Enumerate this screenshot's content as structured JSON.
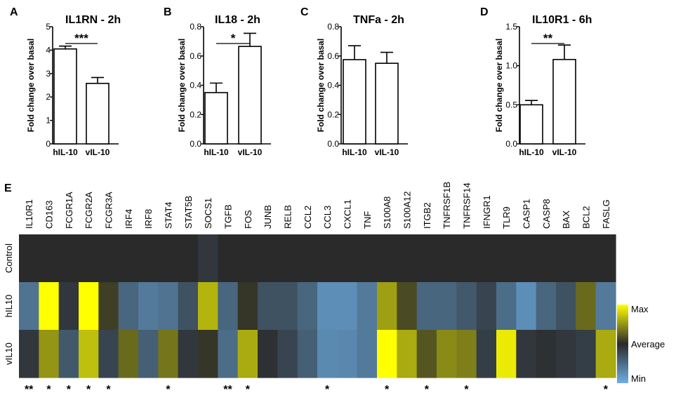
{
  "chart_data": [
    {
      "type": "bar",
      "panel_letter": "A",
      "title": "IL1RN - 2h",
      "ylabel": "Fold change over basal",
      "categories": [
        "hIL-10",
        "vIL-10"
      ],
      "values": [
        4.05,
        2.58
      ],
      "errors": [
        0.12,
        0.25
      ],
      "ylim": [
        0,
        5
      ],
      "yticks": [
        "0",
        "1",
        "2",
        "3",
        "4",
        "5"
      ],
      "significance": "***"
    },
    {
      "type": "bar",
      "panel_letter": "B",
      "title": "IL18 - 2h",
      "ylabel": "Fold change over basal",
      "categories": [
        "hIL-10",
        "vIL-10"
      ],
      "values": [
        0.35,
        0.665
      ],
      "errors": [
        0.065,
        0.09
      ],
      "ylim": [
        0,
        0.8
      ],
      "yticks": [
        "0.0",
        "0.2",
        "0.4",
        "0.6",
        "0.8"
      ],
      "significance": "*"
    },
    {
      "type": "bar",
      "panel_letter": "C",
      "title": "TNFa - 2h",
      "ylabel": "Fold change over basal",
      "categories": [
        "hIL-10",
        "vIL-10"
      ],
      "values": [
        0.575,
        0.55
      ],
      "errors": [
        0.095,
        0.075
      ],
      "ylim": [
        0,
        0.8
      ],
      "yticks": [
        "0.0",
        "0.2",
        "0.4",
        "0.6",
        "0.8"
      ],
      "significance": ""
    },
    {
      "type": "bar",
      "panel_letter": "D",
      "title": "IL10R1 - 6h",
      "ylabel": "Fold change over basal",
      "categories": [
        "hIL-10",
        "vIL-10"
      ],
      "values": [
        0.5,
        1.08
      ],
      "errors": [
        0.055,
        0.185
      ],
      "ylim": [
        0,
        1.5
      ],
      "yticks": [
        "0.0",
        "0.5",
        "1.0",
        "1.5"
      ],
      "significance": "**"
    },
    {
      "type": "heatmap",
      "panel_letter": "E",
      "columns": [
        "IL10R1",
        "CD163",
        "FCGR1A",
        "FCGR2A",
        "FCGR3A",
        "IRF4",
        "IRF8",
        "STAT4",
        "STAT5B",
        "SOCS1",
        "TGFB",
        "FOS",
        "JUNB",
        "RELB",
        "CCL2",
        "CCL3",
        "CXCL1",
        "TNF",
        "S100A8",
        "S100A12",
        "ITGB2",
        "TNFRSF1B",
        "TNFRSF14",
        "IFNGR1",
        "TLR9",
        "CASP1",
        "CASP8",
        "BAX",
        "BCL2",
        "FASLG"
      ],
      "rows": [
        "Control",
        "hIL10",
        "vIL10"
      ],
      "values": [
        [
          0,
          0,
          0,
          0,
          0,
          0,
          0,
          0,
          0,
          -0.1,
          0,
          0,
          0,
          0,
          0,
          0,
          0,
          0,
          0,
          0,
          0,
          0,
          0,
          0,
          0,
          0,
          0,
          0,
          0,
          0
        ],
        [
          -0.55,
          1.0,
          -0.1,
          1.0,
          0.1,
          -0.45,
          -0.6,
          -0.55,
          -0.3,
          0.65,
          -0.45,
          0.05,
          -0.3,
          -0.3,
          -0.45,
          -0.75,
          -0.75,
          -0.6,
          0.55,
          0.15,
          -0.45,
          -0.45,
          -0.35,
          -0.2,
          -0.5,
          -0.75,
          -0.45,
          -0.3,
          0.3,
          -0.6
        ],
        [
          -0.1,
          0.5,
          -0.35,
          0.7,
          -0.2,
          0.3,
          -0.4,
          0.35,
          -0.1,
          0.05,
          -0.5,
          0.6,
          -0.05,
          -0.2,
          -0.4,
          -0.72,
          -0.7,
          -0.6,
          1.0,
          0.6,
          0.2,
          0.45,
          0.4,
          -0.15,
          0.9,
          -0.1,
          -0.05,
          -0.1,
          -0.15,
          0.6
        ]
      ],
      "significance": [
        "**",
        "*",
        "*",
        "*",
        "*",
        "",
        "",
        "*",
        "",
        "",
        "**",
        "*",
        "",
        "",
        "",
        "*",
        "",
        "",
        "*",
        "",
        "*",
        "",
        "*",
        "",
        "",
        "",
        "",
        "",
        "",
        "*"
      ],
      "legend": {
        "max": "Max",
        "average": "Average",
        "min": "Min"
      },
      "colors": {
        "max": "#ffff00",
        "average": "#2a2a2a",
        "min": "#6eafe6"
      }
    }
  ]
}
